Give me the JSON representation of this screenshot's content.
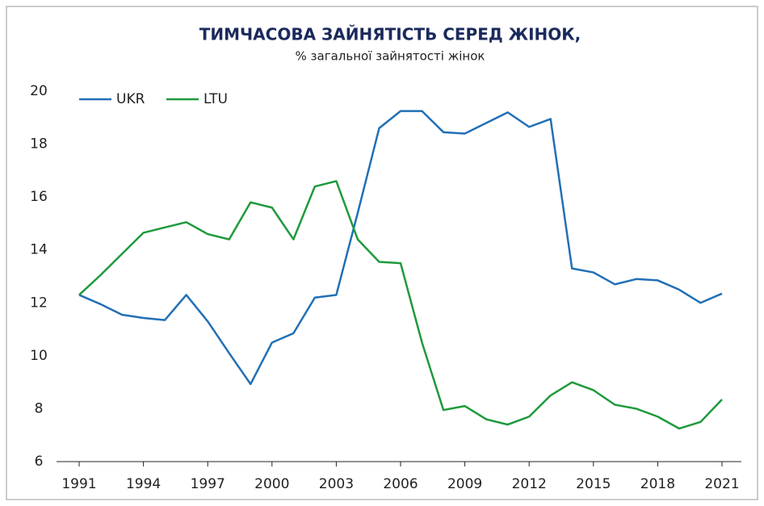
{
  "chart_data": {
    "type": "line",
    "title": "ТИМЧАСОВА ЗАЙНЯТІСТЬ СЕРЕД ЖІНОК,",
    "subtitle": "% загальної зайнятості жінок",
    "x": [
      1991,
      1992,
      1993,
      1994,
      1995,
      1996,
      1997,
      1998,
      1999,
      2000,
      2001,
      2002,
      2003,
      2004,
      2005,
      2006,
      2007,
      2008,
      2009,
      2010,
      2011,
      2012,
      2013,
      2014,
      2015,
      2016,
      2017,
      2018,
      2019,
      2020,
      2021
    ],
    "series": [
      {
        "name": "UKR",
        "color": "#2170b5",
        "values": [
          12.3,
          11.95,
          11.55,
          11.43,
          11.35,
          12.3,
          11.3,
          10.1,
          8.93,
          10.5,
          10.85,
          12.2,
          12.3,
          15.4,
          18.6,
          19.25,
          19.25,
          18.45,
          18.4,
          18.8,
          19.2,
          18.65,
          18.95,
          13.3,
          13.15,
          12.7,
          12.9,
          12.85,
          12.5,
          12.0,
          12.35
        ]
      },
      {
        "name": "LTU",
        "color": "#1e9a3c",
        "values": [
          12.3,
          13.05,
          13.85,
          14.65,
          14.85,
          15.05,
          14.6,
          14.4,
          15.8,
          15.6,
          14.4,
          16.4,
          16.6,
          14.4,
          13.55,
          13.5,
          10.5,
          7.95,
          8.1,
          7.6,
          7.4,
          7.7,
          8.5,
          9.0,
          8.7,
          8.15,
          8.0,
          7.7,
          7.25,
          7.5,
          8.35
        ]
      }
    ],
    "xlim": [
      1991,
      2021
    ],
    "xticks": [
      1991,
      1994,
      1997,
      2000,
      2003,
      2006,
      2009,
      2012,
      2015,
      2018,
      2021
    ],
    "ylim": [
      6,
      20
    ],
    "yticks": [
      6,
      8,
      10,
      12,
      14,
      16,
      18,
      20
    ],
    "grid": false,
    "legend": "upper-left"
  }
}
